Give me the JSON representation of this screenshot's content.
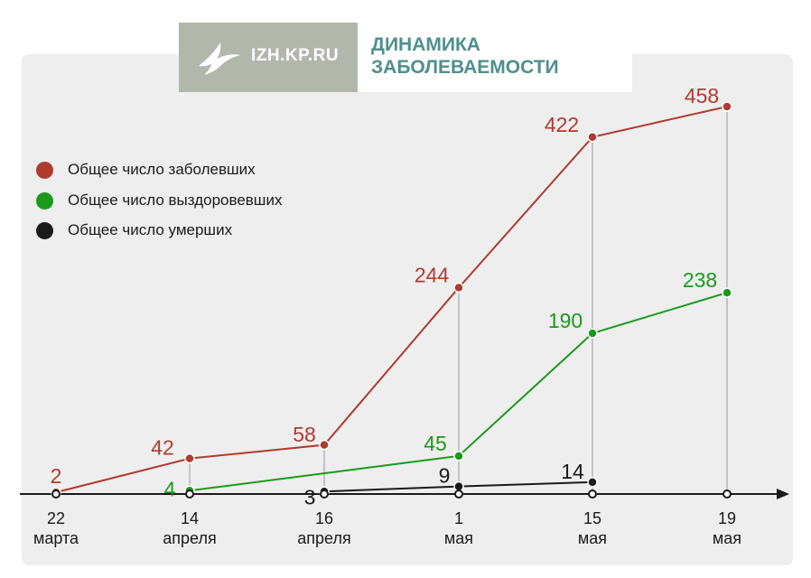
{
  "header": {
    "logo_text": "IZH.KP.RU",
    "title_line1": "ДИНАМИКА",
    "title_line2": "ЗАБОЛЕВАЕМОСТИ"
  },
  "colors": {
    "cases": "#b03a2e",
    "recovered": "#1a9a1a",
    "deaths": "#1a1a1a",
    "title": "#4f8f8f",
    "logo_bg": "#b2b7ac"
  },
  "icons": {
    "logo": "swallow-bird-icon"
  },
  "legend": [
    {
      "label": "Общее число заболевших",
      "color": "#b03a2e"
    },
    {
      "label": "Общее число выздоровевших",
      "color": "#1a9a1a"
    },
    {
      "label": "Общее число умерших",
      "color": "#1a1a1a"
    }
  ],
  "chart_data": {
    "type": "line",
    "categories": [
      [
        "22",
        "марта"
      ],
      [
        "14",
        "апреля"
      ],
      [
        "16",
        "апреля"
      ],
      [
        "1",
        "мая"
      ],
      [
        "15",
        "мая"
      ],
      [
        "19",
        "мая"
      ]
    ],
    "series": [
      {
        "name": "Общее число заболевших",
        "color": "#b03a2e",
        "values": [
          2,
          42,
          58,
          244,
          422,
          458
        ]
      },
      {
        "name": "Общее число выздоровевших",
        "color": "#1a9a1a",
        "values": [
          null,
          4,
          null,
          45,
          190,
          238
        ]
      },
      {
        "name": "Общее число умерших",
        "color": "#1a1a1a",
        "values": [
          null,
          null,
          3,
          9,
          14,
          null
        ]
      }
    ],
    "ylim": [
      0,
      480
    ],
    "grid": false,
    "legend_position": "top-left"
  }
}
